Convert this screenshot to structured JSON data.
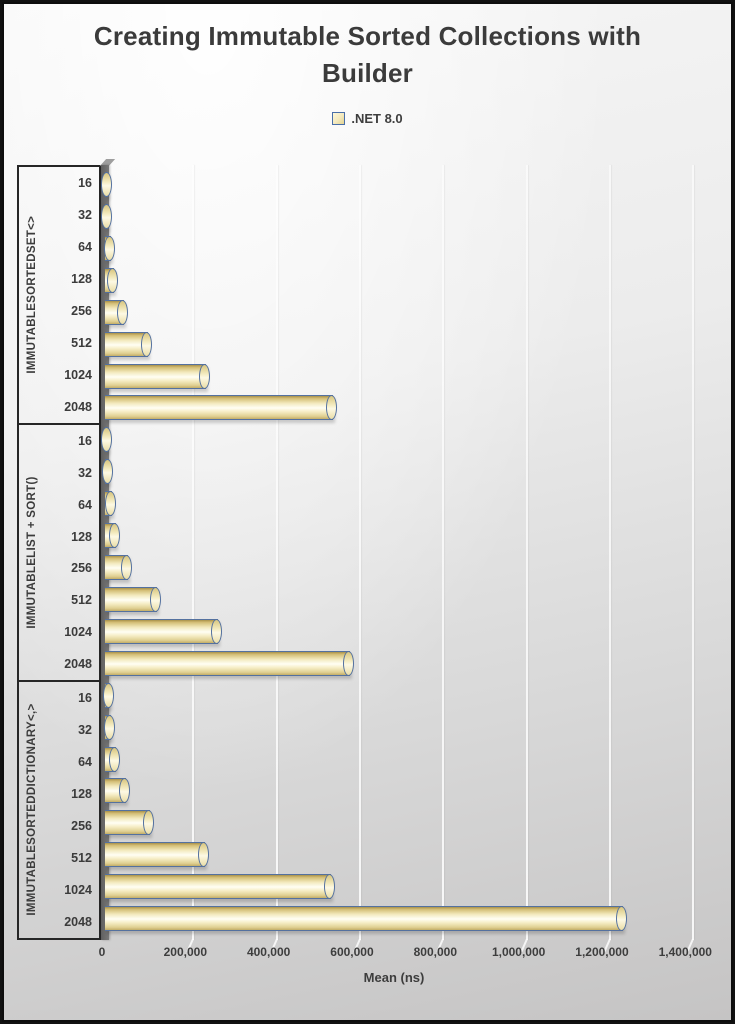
{
  "chart": {
    "title": "Creating Immutable Sorted Collections with Builder",
    "legend_label": ".NET 8.0",
    "xlabel": "Mean (ns)"
  },
  "chart_data": {
    "type": "bar",
    "orientation": "horizontal",
    "title": "Creating Immutable Sorted Collections with Builder",
    "series_name": ".NET 8.0",
    "xlabel": "Mean (ns)",
    "xlim": [
      0,
      1400000
    ],
    "x_tick_interval": 200000,
    "x_tick_labels": [
      "0",
      "200,000",
      "400,000",
      "600,000",
      "800,000",
      "1,000,000",
      "1,200,000",
      "1,400,000"
    ],
    "grid": true,
    "legend_position": "top-center",
    "categories": [
      "16",
      "32",
      "64",
      "128",
      "256",
      "512",
      "1024",
      "2048"
    ],
    "groups": [
      {
        "label": "IMMUTABLESORTEDSET<>",
        "values": [
          3000,
          5500,
          11000,
          19000,
          43000,
          100000,
          240000,
          545000
        ]
      },
      {
        "label": "IMMUTABLELIST  + SORT()",
        "values": [
          4500,
          7000,
          14000,
          23000,
          53000,
          122000,
          270000,
          585000
        ]
      },
      {
        "label": "IMMUTABLESORTEDDICTIONARY<,>",
        "values": [
          9000,
          13000,
          25000,
          49000,
          105000,
          238000,
          540000,
          1240000
        ]
      }
    ],
    "colors": {
      "bar_fill_light": "#fffef4",
      "bar_fill_dark": "#c3ae67",
      "bar_border": "#54719f",
      "wall": "#6f6f6f",
      "text": "#3b3b3b",
      "background_top": "#f6f6f6",
      "background_bottom": "#c5c4c4"
    }
  }
}
